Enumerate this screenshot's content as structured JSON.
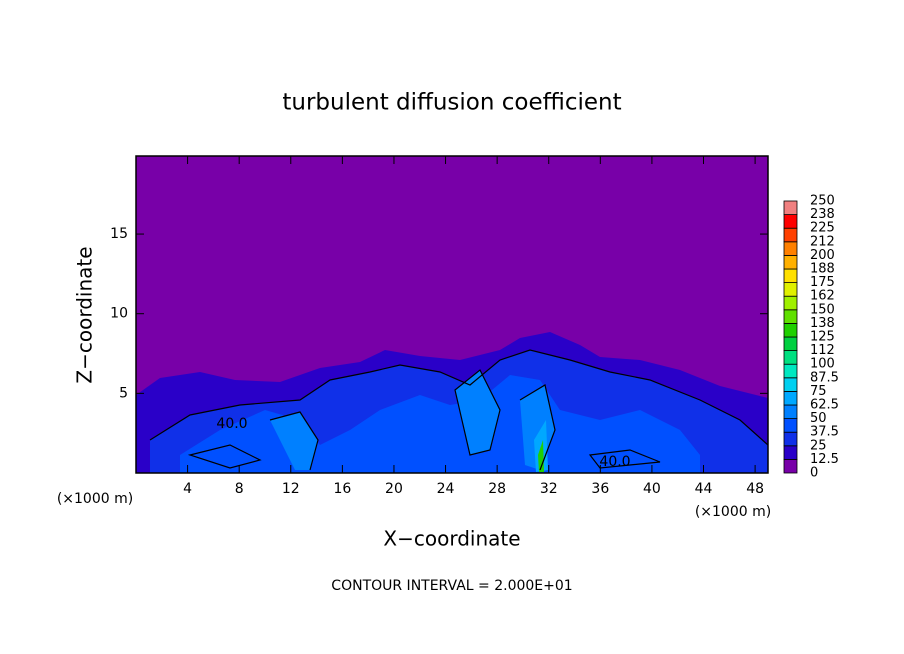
{
  "chart_data": {
    "type": "contour",
    "title": "turbulent diffusion coefficient",
    "x_label": "X−coordinate",
    "y_label": "Z−coordinate",
    "y_unit_label": "(×1000 m)",
    "x_unit_label": "(×1000 m)",
    "footer": "CONTOUR INTERVAL = 2.000E+01",
    "contour_labels": [
      "40.0",
      "40.0"
    ],
    "xlim": [
      0,
      49
    ],
    "ylim": [
      0,
      19.9
    ],
    "xticks": [
      4,
      8,
      12,
      16,
      20,
      24,
      28,
      32,
      36,
      40,
      44,
      48
    ],
    "yticks": [
      5,
      10,
      15
    ],
    "colorbar": {
      "levels": [
        0,
        12.5,
        25,
        37.5,
        50,
        62.5,
        75,
        87.5,
        100,
        {
          "value": 112.5,
          "label": "112"
        },
        125,
        {
          "value": 137.5,
          "label": "138"
        },
        150,
        {
          "value": 162.5,
          "label": "162"
        },
        175,
        {
          "value": 187.5,
          "label": "188"
        },
        200,
        {
          "value": 212.5,
          "label": "212"
        },
        225,
        {
          "value": 237.5,
          "label": "238"
        },
        250
      ],
      "colors": [
        "#7800a8",
        "#2a00c8",
        "#1030e8",
        "#0050ff",
        "#0080ff",
        "#00a8ff",
        "#00d0f0",
        "#00e8c0",
        "#00e080",
        "#00d040",
        "#20d000",
        "#60e000",
        "#a0f000",
        "#e0f000",
        "#ffe000",
        "#ffb000",
        "#ff8000",
        "#ff4000",
        "#ff0000",
        "#f08080"
      ]
    }
  }
}
